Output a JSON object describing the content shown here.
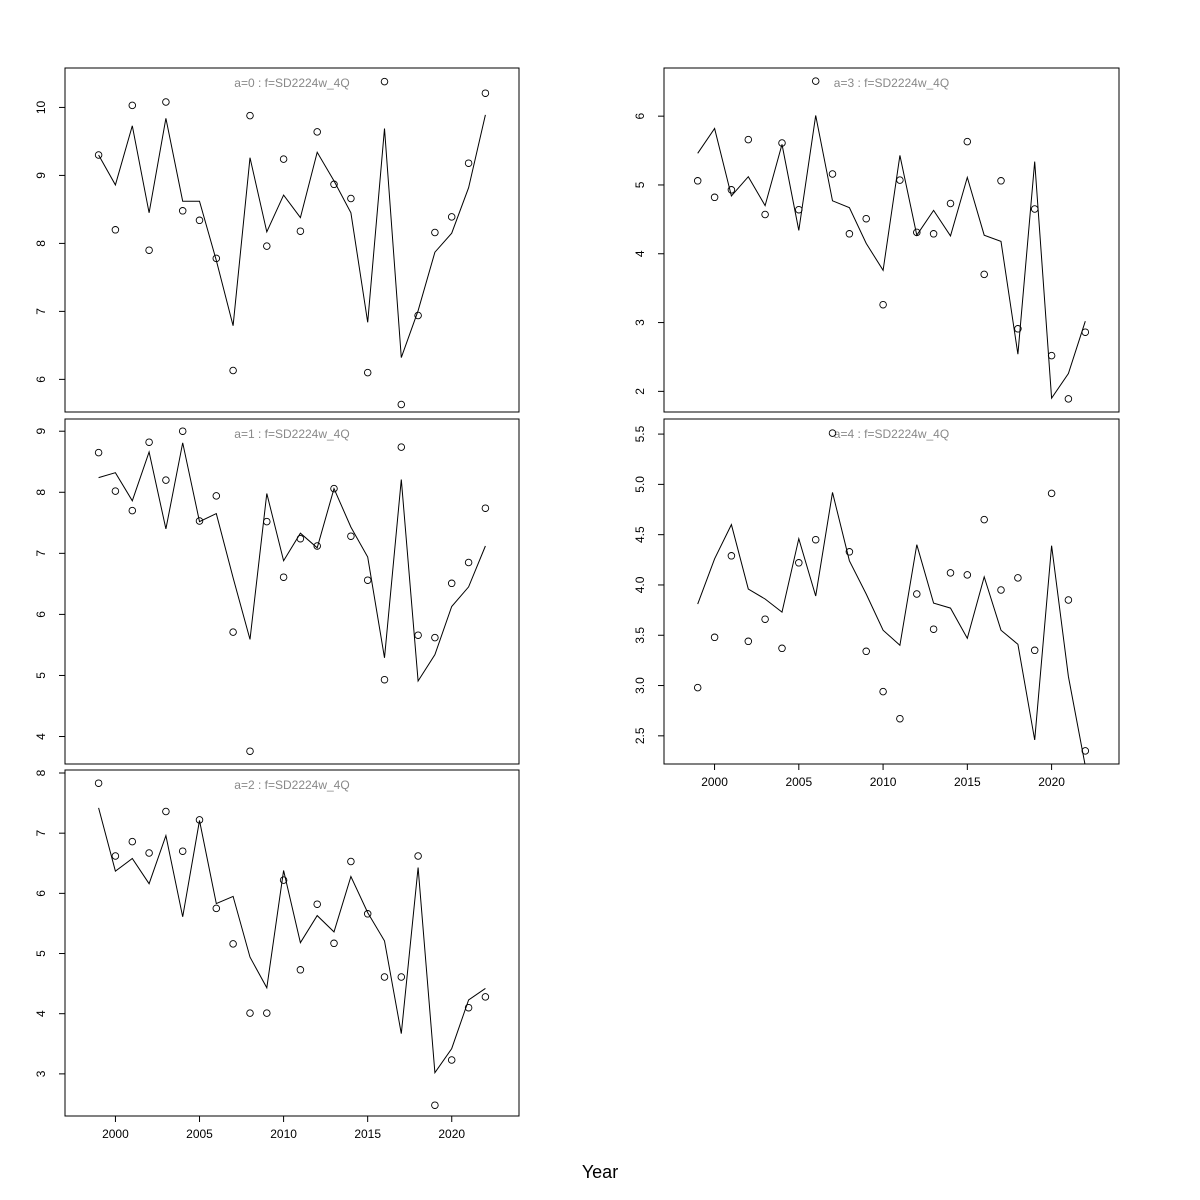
{
  "chart_data": {
    "type": "line",
    "xlabel": "Year",
    "x": [
      1999,
      2000,
      2001,
      2002,
      2003,
      2004,
      2005,
      2006,
      2007,
      2008,
      2009,
      2010,
      2011,
      2012,
      2013,
      2014,
      2015,
      2016,
      2017,
      2018,
      2019,
      2020,
      2021,
      2022
    ],
    "xlim": [
      1997,
      2024
    ],
    "x_ticks": [
      2000,
      2005,
      2010,
      2015,
      2020
    ],
    "panels": [
      {
        "title": "a=0  :  f=SD2224w_4Q",
        "ylim": [
          5.52,
          10.58
        ],
        "yticks": [
          6,
          7,
          8,
          9,
          10
        ],
        "points": [
          9.3,
          8.2,
          10.03,
          7.9,
          10.08,
          8.48,
          8.34,
          7.78,
          6.13,
          9.88,
          7.96,
          9.24,
          8.18,
          9.64,
          8.87,
          8.66,
          6.1,
          10.38,
          5.63,
          6.94,
          8.16,
          8.39,
          9.18,
          10.21
        ],
        "line": [
          9.3,
          8.86,
          9.73,
          8.45,
          9.84,
          8.62,
          8.62,
          7.75,
          6.79,
          9.26,
          8.17,
          8.71,
          8.38,
          9.34,
          8.92,
          8.45,
          6.84,
          9.69,
          6.32,
          7.01,
          7.87,
          8.15,
          8.82,
          9.89
        ]
      },
      {
        "title": "a=1  :  f=SD2224w_4Q",
        "ylim": [
          3.55,
          9.2
        ],
        "yticks": [
          4,
          5,
          6,
          7,
          8,
          9
        ],
        "points": [
          8.65,
          8.02,
          7.7,
          8.82,
          8.2,
          9.0,
          7.53,
          7.94,
          5.71,
          3.76,
          7.52,
          6.61,
          7.24,
          7.12,
          8.06,
          7.28,
          6.56,
          4.93,
          8.74,
          5.66,
          5.62,
          6.51,
          6.85,
          7.74
        ],
        "line": [
          8.24,
          8.32,
          7.86,
          8.66,
          7.4,
          8.81,
          7.52,
          7.65,
          6.6,
          5.59,
          7.98,
          6.88,
          7.33,
          7.09,
          8.06,
          7.43,
          6.94,
          5.29,
          8.21,
          4.91,
          5.34,
          6.13,
          6.45,
          7.12
        ]
      },
      {
        "title": "a=2  :  f=SD2224w_4Q",
        "ylim": [
          2.3,
          8.05
        ],
        "yticks": [
          3,
          4,
          5,
          6,
          7,
          8
        ],
        "points": [
          7.83,
          6.62,
          6.86,
          6.67,
          7.36,
          6.7,
          7.22,
          5.75,
          5.16,
          4.01,
          4.01,
          6.22,
          4.73,
          5.82,
          5.17,
          6.53,
          5.66,
          4.61,
          4.61,
          6.62,
          2.48,
          3.23,
          4.1,
          4.28
        ],
        "line": [
          7.42,
          6.37,
          6.58,
          6.16,
          6.96,
          5.61,
          7.21,
          5.83,
          5.95,
          4.94,
          4.43,
          6.38,
          5.18,
          5.63,
          5.36,
          6.28,
          5.68,
          5.21,
          3.67,
          6.43,
          3.02,
          3.42,
          4.23,
          4.42
        ]
      },
      {
        "title": "a=3  :  f=SD2224w_4Q",
        "ylim": [
          1.7,
          6.7
        ],
        "yticks": [
          2,
          3,
          4,
          5,
          6
        ],
        "points": [
          5.06,
          4.82,
          4.93,
          5.66,
          4.57,
          5.61,
          4.64,
          6.51,
          5.16,
          4.29,
          4.51,
          3.26,
          5.07,
          4.31,
          4.29,
          4.73,
          5.63,
          3.7,
          5.06,
          2.91,
          4.65,
          2.52,
          1.89,
          2.86
        ],
        "line": [
          5.46,
          5.82,
          4.84,
          5.12,
          4.7,
          5.59,
          4.34,
          6.01,
          4.77,
          4.67,
          4.15,
          3.76,
          5.43,
          4.27,
          4.63,
          4.26,
          5.11,
          4.27,
          4.18,
          2.54,
          5.34,
          1.9,
          2.26,
          3.02
        ]
      },
      {
        "title": "a=4  :  f=SD2224w_4Q",
        "ylim": [
          2.22,
          5.65
        ],
        "yticks": [
          2.5,
          3.0,
          3.5,
          4.0,
          4.5,
          5.0,
          5.5
        ],
        "ytick_labels": [
          "2.5",
          "3.0",
          "3.5",
          "4.0",
          "4.5",
          "5.0",
          "5.5"
        ],
        "points": [
          2.98,
          3.48,
          4.29,
          3.44,
          3.66,
          3.37,
          4.22,
          4.45,
          5.51,
          4.33,
          3.34,
          2.94,
          2.67,
          3.91,
          3.56,
          4.12,
          4.1,
          4.65,
          3.95,
          4.07,
          3.35,
          4.91,
          3.85,
          2.35
        ],
        "line": [
          3.81,
          4.26,
          4.6,
          3.96,
          3.86,
          3.73,
          4.46,
          3.89,
          4.92,
          4.24,
          3.91,
          3.55,
          3.4,
          4.4,
          3.82,
          3.77,
          3.47,
          4.08,
          3.55,
          3.41,
          2.46,
          4.39,
          3.09,
          2.2
        ]
      }
    ]
  }
}
